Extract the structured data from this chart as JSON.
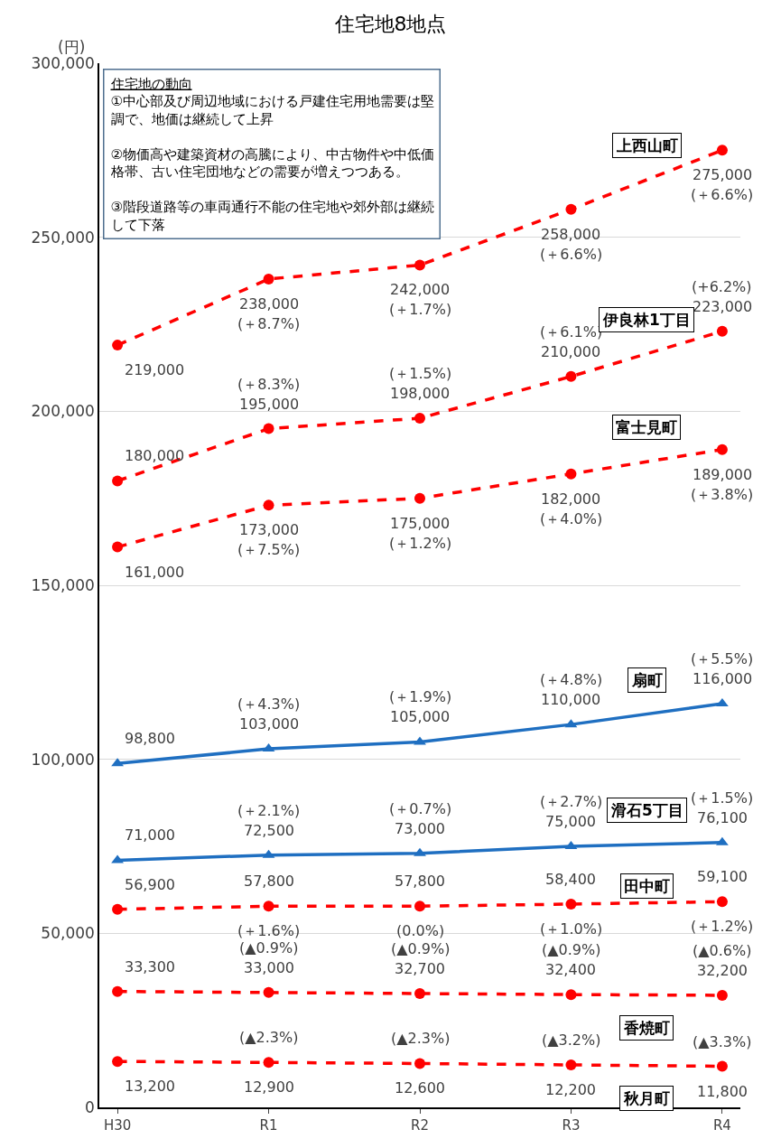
{
  "chart_data": {
    "type": "line",
    "title": "住宅地8地点",
    "ylabel": "(円)",
    "categories": [
      "H30",
      "R1",
      "R2",
      "R3",
      "R4"
    ],
    "ylim": [
      0,
      300000
    ],
    "yticks": [
      {
        "value": 0,
        "label": "0"
      },
      {
        "value": 50000,
        "label": "50,000"
      },
      {
        "value": 100000,
        "label": "100,000"
      },
      {
        "value": 150000,
        "label": "150,000"
      },
      {
        "value": 200000,
        "label": "200,000"
      },
      {
        "value": 250000,
        "label": "250,000"
      },
      {
        "value": 300000,
        "label": "300,000"
      }
    ],
    "grid": "y",
    "legend": false,
    "annotations": [
      "住宅地の動向\n①中心部及び周辺地域における戸建住宅用地需要は堅調で、地価は継続して上昇\n②物価高や建築資材の高騰により、中古物件や中低価格帯、古い住宅団地などの需要が増えつつある。\n③階段道路等の車両通行不能の住宅地や郊外部は継続して下落"
    ],
    "series": [
      {
        "name": "上西山町",
        "color": "#ff0000",
        "line_style": "dashed",
        "marker": "circle",
        "values": [
          219000,
          238000,
          242000,
          258000,
          275000
        ],
        "value_labels": [
          "219,000",
          "238,000\n(＋8.7%)",
          "242,000\n(＋1.7%)",
          "258,000\n(＋6.6%)",
          "275,000\n(＋6.6%)"
        ]
      },
      {
        "name": "伊良林1丁目",
        "color": "#ff0000",
        "line_style": "dashed",
        "marker": "circle",
        "values": [
          180000,
          195000,
          198000,
          210000,
          223000
        ],
        "value_labels": [
          "180,000",
          "195,000\n(＋8.3%)",
          "198,000\n(＋1.5%)",
          "210,000\n(＋6.1%)",
          "223,000\n(+6.2%)"
        ]
      },
      {
        "name": "富士見町",
        "color": "#ff0000",
        "line_style": "dashed",
        "marker": "circle",
        "values": [
          161000,
          173000,
          175000,
          182000,
          189000
        ],
        "value_labels": [
          "161,000",
          "173,000\n(＋7.5%)",
          "175,000\n(＋1.2%)",
          "182,000\n(＋4.0%)",
          "189,000\n(＋3.8%)"
        ]
      },
      {
        "name": "扇町",
        "color": "#1f6fc1",
        "line_style": "solid",
        "marker": "triangle",
        "values": [
          98800,
          103000,
          105000,
          110000,
          116000
        ],
        "value_labels": [
          "98,800",
          "103,000\n(＋4.3%)",
          "105,000\n(＋1.9%)",
          "110,000\n(＋4.8%)",
          "116,000\n(＋5.5%)"
        ]
      },
      {
        "name": "滑石5丁目",
        "color": "#1f6fc1",
        "line_style": "solid",
        "marker": "triangle",
        "values": [
          71000,
          72500,
          73000,
          75000,
          76100
        ],
        "value_labels": [
          "71,000",
          "72,500\n(＋2.1%)",
          "73,000\n(＋0.7%)",
          "75,000\n(＋2.7%)",
          "76,100\n(＋1.5%)"
        ]
      },
      {
        "name": "田中町",
        "color": "#ff0000",
        "line_style": "dashed",
        "marker": "circle",
        "values": [
          56900,
          57800,
          57800,
          58400,
          59100
        ],
        "value_labels": [
          "56,900",
          "57,800\n(＋1.6%)",
          "57,800\n(0.0%)",
          "58,400\n(＋1.0%)",
          "59,100\n(＋1.2%)"
        ]
      },
      {
        "name": "香焼町",
        "color": "#ff0000",
        "line_style": "dashed",
        "marker": "circle",
        "values": [
          33300,
          33000,
          32700,
          32400,
          32200
        ],
        "value_labels": [
          "33,300",
          "33,000\n(▲0.9%)",
          "32,700\n(▲0.9%)",
          "32,400\n(▲0.9%)",
          "32,200\n(▲0.6%)"
        ]
      },
      {
        "name": "秋月町",
        "color": "#ff0000",
        "line_style": "dashed",
        "marker": "circle",
        "values": [
          13200,
          12900,
          12600,
          12200,
          11800
        ],
        "value_labels": [
          "13,200",
          "12,900\n(▲2.3%)",
          "12,600\n(▲2.3%)",
          "12,200\n(▲3.2%)",
          "11,800\n(▲3.3%)"
        ]
      }
    ]
  }
}
